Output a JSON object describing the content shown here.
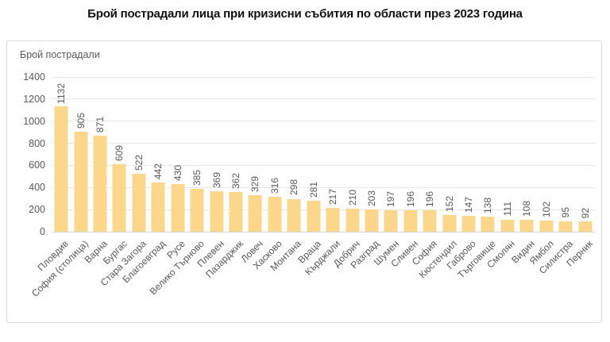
{
  "title": "Брой пострадали лица при кризисни събития по области през 2023 година",
  "chart_data": {
    "type": "bar",
    "title": "Брой пострадали лица при кризисни събития по области през 2023 година",
    "ylabel": "Брой пострадали",
    "xlabel": "",
    "categories": [
      "Пловдив",
      "София (столица)",
      "Варна",
      "Бургас",
      "Стара Загора",
      "Благоевград",
      "Русе",
      "Велико Търново",
      "Плевен",
      "Пазарджик",
      "Ловеч",
      "Хасково",
      "Монтана",
      "Враца",
      "Кърджали",
      "Добрич",
      "Разград",
      "Шумен",
      "Сливен",
      "София",
      "Кюстендил",
      "Габрово",
      "Търговище",
      "Смолян",
      "Видин",
      "Ямбол",
      "Силистра",
      "Перник"
    ],
    "values": [
      1132,
      905,
      871,
      609,
      522,
      442,
      430,
      385,
      369,
      362,
      329,
      316,
      298,
      281,
      217,
      210,
      203,
      197,
      196,
      196,
      152,
      147,
      138,
      111,
      108,
      102,
      95,
      92
    ],
    "ylim": [
      0,
      1400
    ],
    "ytick_step": 200,
    "grid": true,
    "legend": "none",
    "data_labels": "rotated-vertical",
    "colors": {
      "bar": "#fbd78b",
      "label_text": "#595959",
      "gridline": "#e8e8e8",
      "axis_line": "#d6d6d6",
      "card_border": "#d9d9d9",
      "title_text": "#111111"
    }
  }
}
